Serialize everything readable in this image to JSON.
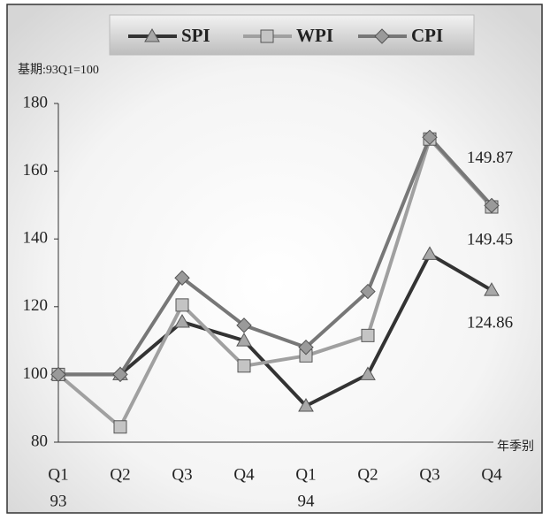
{
  "chart_data": {
    "type": "line",
    "note": "基期:93Q1=100",
    "xlabel": "年季别",
    "categories": [
      "Q1",
      "Q2",
      "Q3",
      "Q4",
      "Q1",
      "Q2",
      "Q3",
      "Q4"
    ],
    "years": [
      "93",
      null,
      null,
      null,
      "94",
      null,
      null,
      null
    ],
    "ylim": [
      80,
      180
    ],
    "yticks": [
      80,
      100,
      120,
      140,
      160,
      180
    ],
    "series": [
      {
        "name": "SPI",
        "color": "#333333",
        "marker": "triangle",
        "values": [
          100,
          100,
          115.5,
          110,
          90.7,
          100,
          135.5,
          124.86
        ]
      },
      {
        "name": "WPI",
        "color": "#a0a0a0",
        "marker": "square",
        "values": [
          100,
          84.5,
          120.5,
          102.5,
          105.5,
          111.5,
          169.5,
          149.45
        ]
      },
      {
        "name": "CPI",
        "color": "#777777",
        "marker": "diamond",
        "values": [
          100,
          100,
          128.5,
          114.5,
          108,
          124.5,
          170,
          149.87
        ]
      }
    ]
  }
}
